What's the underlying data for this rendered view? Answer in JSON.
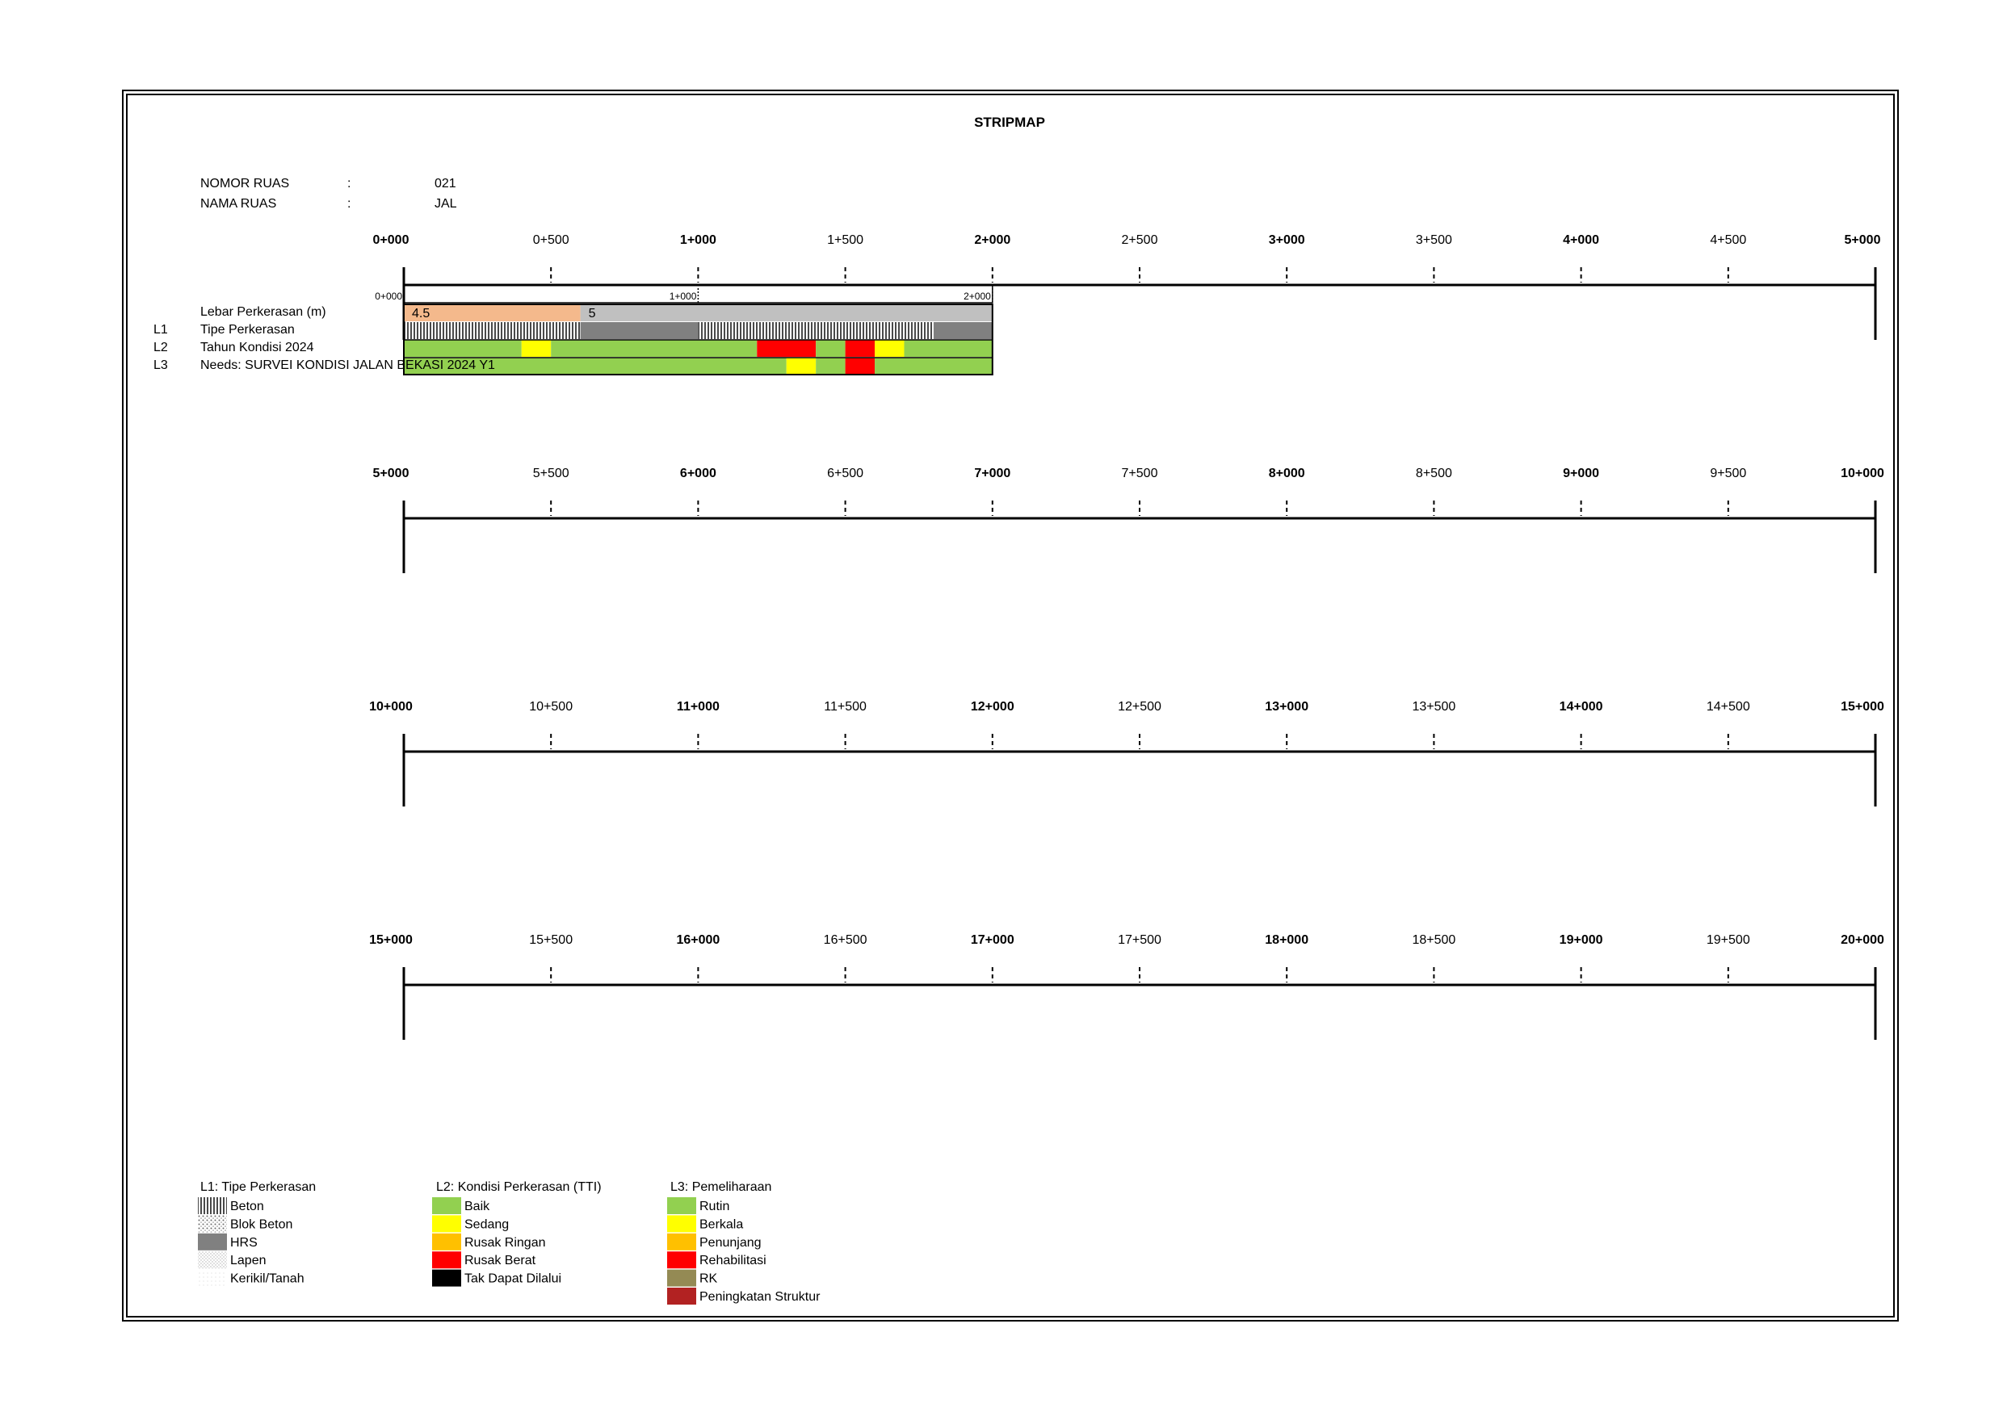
{
  "title": "STRIPMAP",
  "header": {
    "nomor_ruas_label": "NOMOR RUAS",
    "nomor_ruas_sep": ":",
    "nomor_ruas_value": "021",
    "nama_ruas_label": "NAMA RUAS",
    "nama_ruas_sep": ":",
    "nama_ruas_value": "JAL"
  },
  "scale_rows": [
    {
      "ticks": [
        "0+000",
        "0+500",
        "1+000",
        "1+500",
        "2+000",
        "2+500",
        "3+000",
        "3+500",
        "4+000",
        "4+500",
        "5+000"
      ]
    },
    {
      "ticks": [
        "5+000",
        "5+500",
        "6+000",
        "6+500",
        "7+000",
        "7+500",
        "8+000",
        "8+500",
        "9+000",
        "9+500",
        "10+000"
      ]
    },
    {
      "ticks": [
        "10+000",
        "10+500",
        "11+000",
        "11+500",
        "12+000",
        "12+500",
        "13+000",
        "13+500",
        "14+000",
        "14+500",
        "15+000"
      ]
    },
    {
      "ticks": [
        "15+000",
        "15+500",
        "16+000",
        "16+500",
        "17+000",
        "17+500",
        "18+000",
        "18+500",
        "19+000",
        "19+500",
        "20+000"
      ]
    }
  ],
  "segment": {
    "start_km": 0,
    "end_km": 2.0,
    "mini_ticks": [
      "0+000",
      "1+000",
      "2+000"
    ],
    "row_labels": [
      {
        "code": "",
        "label": "Lebar Perkerasan (m)"
      },
      {
        "code": "L1",
        "label": "Tipe Perkerasan"
      },
      {
        "code": "L2",
        "label": "Tahun Kondisi 2024"
      },
      {
        "code": "L3",
        "label": "Needs: SURVEI KONDISI JALAN BEKASI 2024 Y1"
      }
    ],
    "width_bands": [
      {
        "from_km": 0.0,
        "to_km": 0.6,
        "value": "4.5",
        "color": "#f4b98c"
      },
      {
        "from_km": 0.6,
        "to_km": 2.0,
        "value": "5",
        "color": "#c0c0c0"
      }
    ],
    "l1_bands": [
      {
        "from_km": 0.0,
        "to_km": 0.6,
        "type": "Beton"
      },
      {
        "from_km": 0.6,
        "to_km": 1.0,
        "type": "HRS"
      },
      {
        "from_km": 1.0,
        "to_km": 1.8,
        "type": "Beton"
      },
      {
        "from_km": 1.8,
        "to_km": 2.0,
        "type": "HRS"
      }
    ],
    "l2_bands": [
      {
        "from_km": 0.0,
        "to_km": 0.4,
        "class": "Baik"
      },
      {
        "from_km": 0.4,
        "to_km": 0.5,
        "class": "Sedang"
      },
      {
        "from_km": 0.5,
        "to_km": 1.2,
        "class": "Baik"
      },
      {
        "from_km": 1.2,
        "to_km": 1.4,
        "class": "Rusak Berat"
      },
      {
        "from_km": 1.4,
        "to_km": 1.5,
        "class": "Baik"
      },
      {
        "from_km": 1.5,
        "to_km": 1.6,
        "class": "Rusak Berat"
      },
      {
        "from_km": 1.6,
        "to_km": 1.7,
        "class": "Sedang"
      },
      {
        "from_km": 1.7,
        "to_km": 2.0,
        "class": "Baik"
      }
    ],
    "l3_bands": [
      {
        "from_km": 0.0,
        "to_km": 1.3,
        "class": "Rutin"
      },
      {
        "from_km": 1.3,
        "to_km": 1.4,
        "class": "Berkala"
      },
      {
        "from_km": 1.4,
        "to_km": 1.5,
        "class": "Rutin"
      },
      {
        "from_km": 1.5,
        "to_km": 1.6,
        "class": "Rehabilitasi"
      },
      {
        "from_km": 1.6,
        "to_km": 2.0,
        "class": "Rutin"
      }
    ]
  },
  "legend": {
    "l1": {
      "title": "L1: Tipe Perkerasan",
      "items": [
        {
          "label": "Beton",
          "pattern": "vertical-lines"
        },
        {
          "label": "Blok Beton",
          "pattern": "dots"
        },
        {
          "label": "HRS",
          "pattern": "solid-gray"
        },
        {
          "label": "Lapen",
          "pattern": "light-dots"
        },
        {
          "label": "Kerikil/Tanah",
          "pattern": "faint-dots"
        }
      ]
    },
    "l2": {
      "title": "L2: Kondisi Perkerasan (TTI)",
      "items": [
        {
          "label": "Baik",
          "color": "#92d050"
        },
        {
          "label": "Sedang",
          "color": "#ffff00"
        },
        {
          "label": "Rusak Ringan",
          "color": "#ffc000"
        },
        {
          "label": "Rusak Berat",
          "color": "#ff0000"
        },
        {
          "label": "Tak Dapat Dilalui",
          "color": "#000000"
        }
      ]
    },
    "l3": {
      "title": "L3: Pemeliharaan",
      "items": [
        {
          "label": "Rutin",
          "color": "#92d050"
        },
        {
          "label": "Berkala",
          "color": "#ffff00"
        },
        {
          "label": "Penunjang",
          "color": "#ffc000"
        },
        {
          "label": "Rehabilitasi",
          "color": "#ff0000"
        },
        {
          "label": "RK",
          "color": "#948a54"
        },
        {
          "label": "Peningkatan Struktur",
          "color": "#b22222"
        }
      ]
    }
  }
}
